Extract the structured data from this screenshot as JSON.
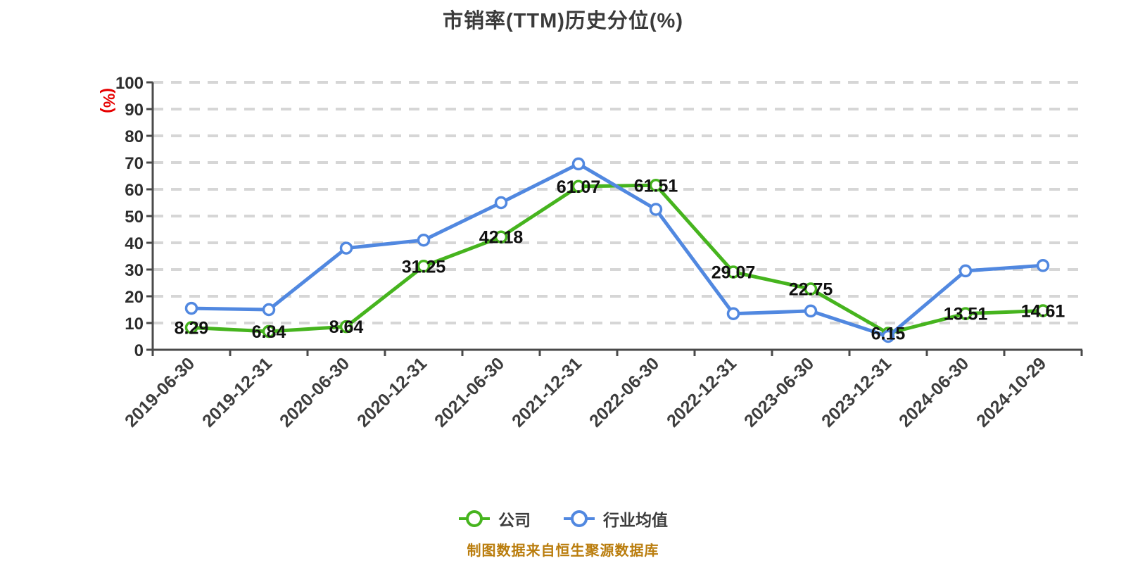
{
  "chart": {
    "title": "市销率(TTM)历史分位(%)",
    "y_axis_unit": "(%)",
    "source_note": "制图数据来自恒生聚源数据库",
    "colors": {
      "company_line": "#46b41e",
      "industry_line": "#5188e0",
      "grid": "#d6d6d6",
      "axis": "#4a4a4a",
      "tick_text": "#2e2e2e",
      "category_text": "#3d3d3d",
      "data_label_text": "#111111",
      "y_unit_text": "#e60000",
      "source_text": "#ba7d0d",
      "title_text": "#3a3a3a",
      "marker_fill": "#ffffff"
    }
  },
  "legend": {
    "items": [
      {
        "label": "公司"
      },
      {
        "label": "行业均值"
      }
    ]
  },
  "chart_data": {
    "type": "line",
    "title": "市销率(TTM)历史分位(%)",
    "categories": [
      "2019-06-30",
      "2019-12-31",
      "2020-06-30",
      "2020-12-31",
      "2021-06-30",
      "2021-12-31",
      "2022-06-30",
      "2022-12-31",
      "2023-06-30",
      "2023-12-31",
      "2024-06-30",
      "2024-10-29"
    ],
    "series": [
      {
        "name": "公司",
        "color": "#46b41e",
        "values": [
          8.29,
          6.84,
          8.64,
          31.25,
          42.18,
          61.07,
          61.51,
          29.07,
          22.75,
          6.15,
          13.51,
          14.61
        ],
        "data_labels": true
      },
      {
        "name": "行业均值",
        "color": "#5188e0",
        "values": [
          15.5,
          15,
          38,
          41,
          55,
          69.5,
          52.5,
          13.5,
          14.5,
          5,
          29.5,
          31.5
        ],
        "data_labels": false
      }
    ],
    "xlabel": "",
    "ylabel": "(%)",
    "ylim": [
      0,
      100
    ],
    "y_tick_step": 10,
    "grid": "horizontal-dashed",
    "legend_position": "bottom-center"
  }
}
